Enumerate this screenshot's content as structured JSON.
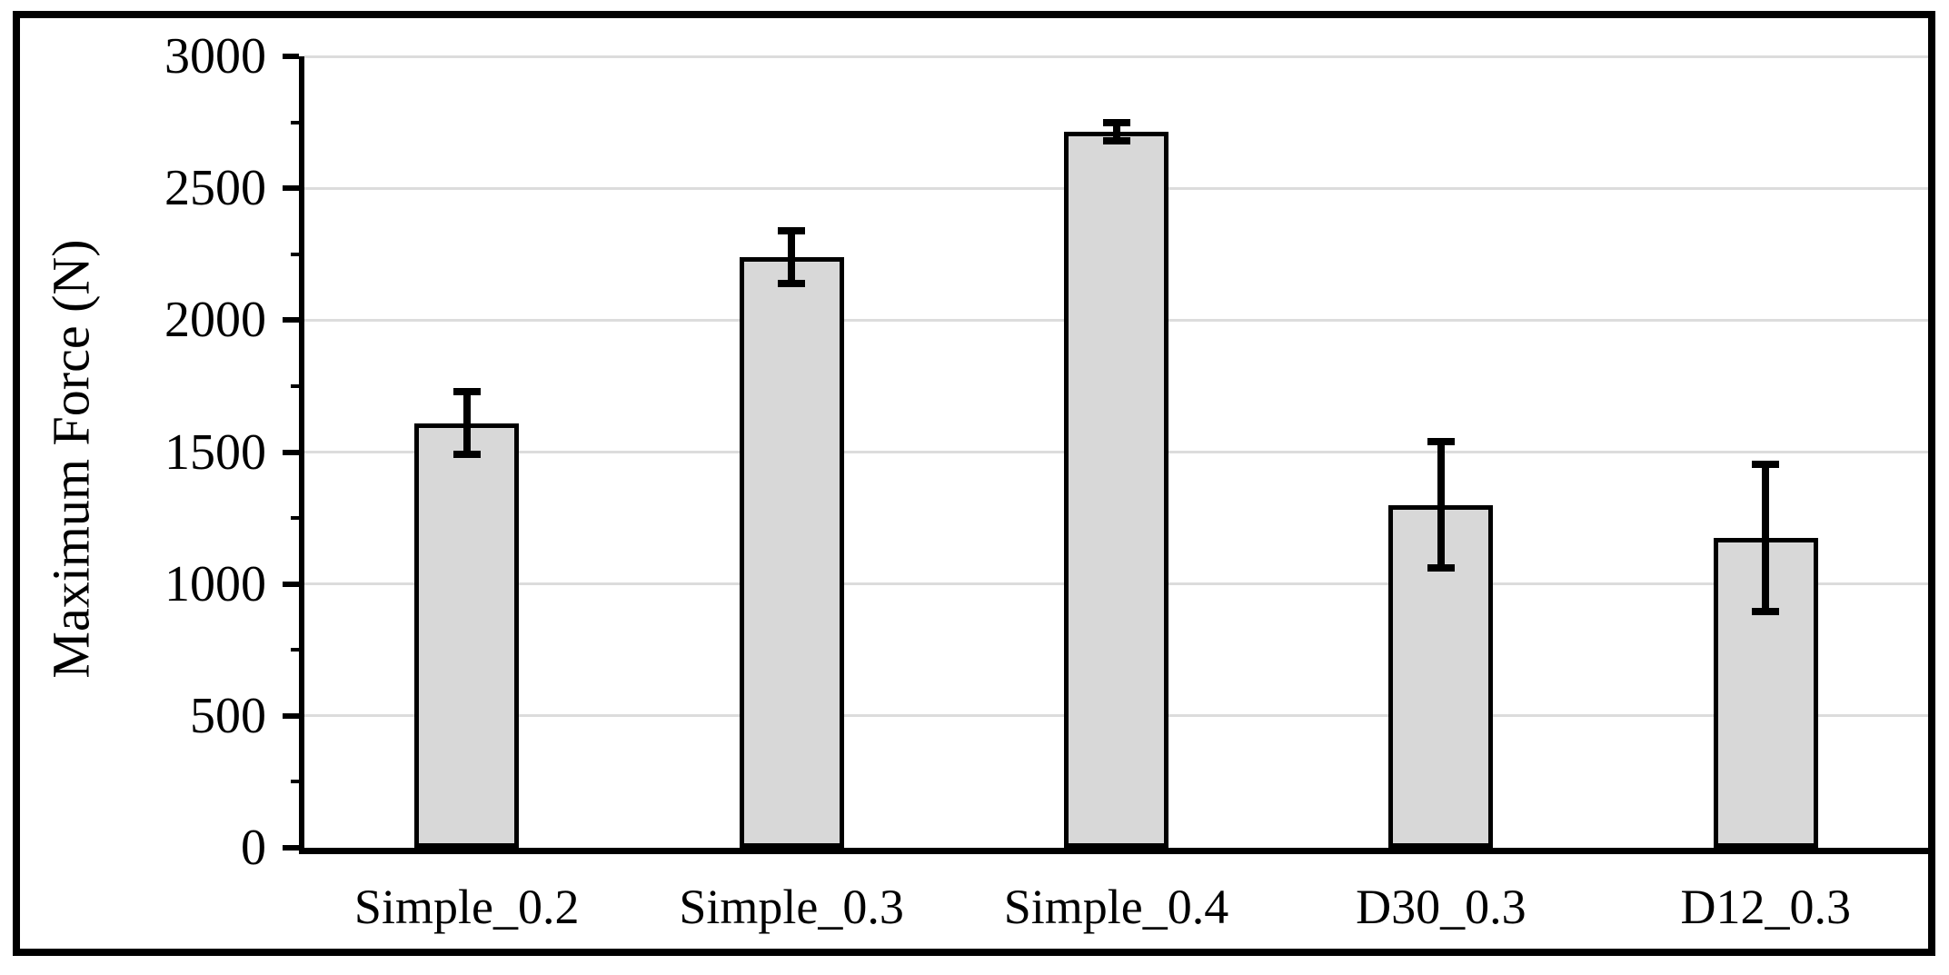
{
  "figure": {
    "background_color": "#ffffff",
    "frame_border_color": "#000000",
    "text_color": "#000000"
  },
  "chart_data": {
    "type": "bar",
    "title": "",
    "xlabel": "",
    "ylabel": "Maximum Force (N)",
    "categories": [
      "Simple_0.2",
      "Simple_0.3",
      "Simple_0.4",
      "D30_0.3",
      "D12_0.3"
    ],
    "values": [
      1610,
      2240,
      2715,
      1300,
      1175
    ],
    "errors": [
      120,
      100,
      35,
      240,
      280
    ],
    "ylim": [
      0,
      3000
    ],
    "ytick_step": 500,
    "ytick_labels": [
      "0",
      "500",
      "1000",
      "1500",
      "2000",
      "2500",
      "3000"
    ],
    "minor_tick_step": 250,
    "grid": true,
    "legend_position": "none",
    "bar_fill_color": "#d8d8d8",
    "bar_border_color": "#000000",
    "error_bar_color": "#000000",
    "gridline_color": "#dcdcdc"
  }
}
